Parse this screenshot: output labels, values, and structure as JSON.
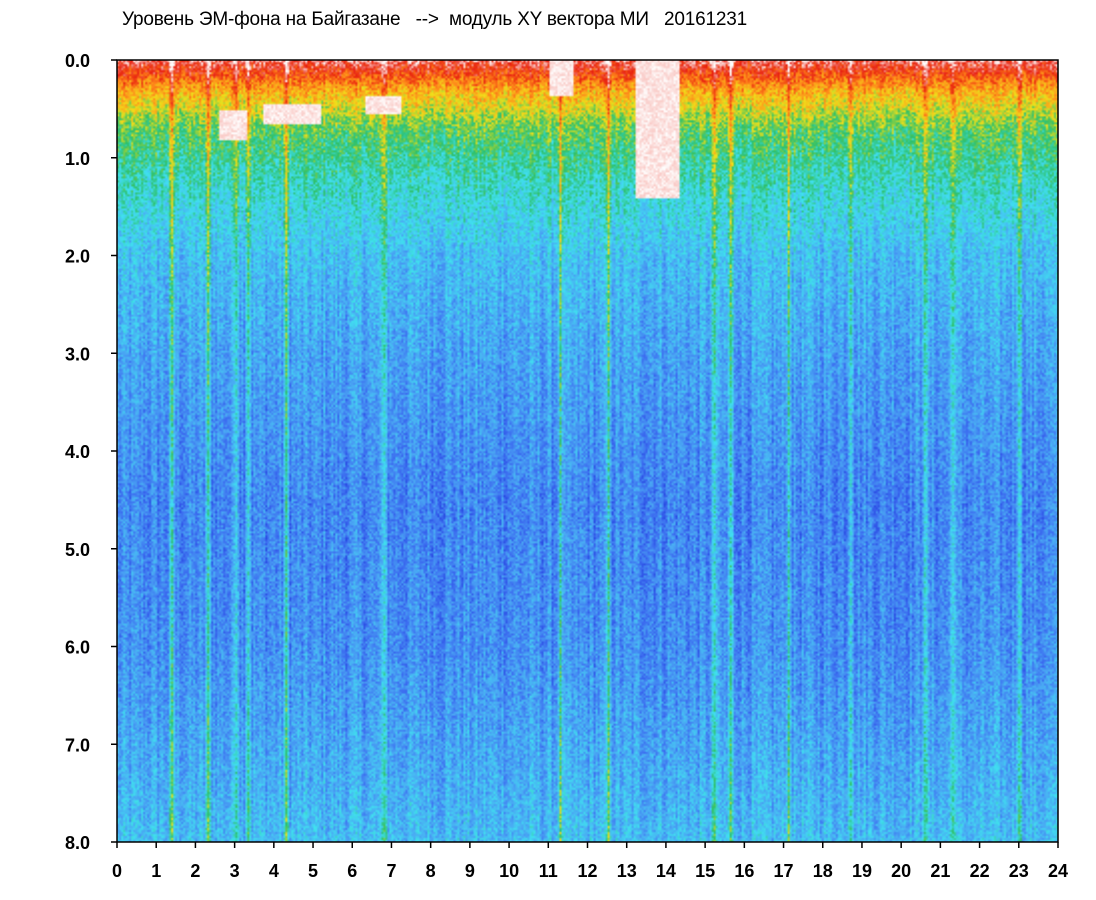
{
  "chart_data": {
    "type": "heatmap",
    "title": "Уровень ЭМ-фона на Байгазане   -->  модуль XY вектора МИ   20161231",
    "xlabel": "",
    "ylabel": "",
    "xlim": [
      0,
      24
    ],
    "ylim": [
      0,
      8
    ],
    "y_inverted": true,
    "grid": false,
    "x_ticks": [
      "0",
      "1",
      "2",
      "3",
      "4",
      "5",
      "6",
      "7",
      "8",
      "9",
      "10",
      "11",
      "12",
      "13",
      "14",
      "15",
      "16",
      "17",
      "18",
      "19",
      "20",
      "21",
      "22",
      "23",
      "24"
    ],
    "y_ticks": [
      "0.0",
      "1.0",
      "2.0",
      "3.0",
      "4.0",
      "5.0",
      "6.0",
      "7.0",
      "8.0"
    ],
    "colorscale": [
      "#1a2fd8",
      "#3c6cf0",
      "#4aa8f4",
      "#40e0f0",
      "#2ec06a",
      "#f0e01a",
      "#ff8a1a",
      "#e82010",
      "#ffffff"
    ],
    "intensity_levels": [
      {
        "y": 0.0,
        "level": 0.92
      },
      {
        "y": 0.3,
        "level": 0.7
      },
      {
        "y": 0.7,
        "level": 0.52
      },
      {
        "y": 1.2,
        "level": 0.42
      },
      {
        "y": 2.0,
        "level": 0.3
      },
      {
        "y": 3.0,
        "level": 0.24
      },
      {
        "y": 4.5,
        "level": 0.18
      },
      {
        "y": 6.0,
        "level": 0.2
      },
      {
        "y": 7.5,
        "level": 0.27
      },
      {
        "y": 8.0,
        "level": 0.3
      }
    ],
    "saturated_regions": [
      {
        "x": [
          2.6,
          3.3
        ],
        "y": [
          0.5,
          0.8
        ]
      },
      {
        "x": [
          3.7,
          5.2
        ],
        "y": [
          0.45,
          0.65
        ]
      },
      {
        "x": [
          6.3,
          7.2
        ],
        "y": [
          0.35,
          0.55
        ]
      },
      {
        "x": [
          11.0,
          11.6
        ],
        "y": [
          0.0,
          0.35
        ]
      },
      {
        "x": [
          13.2,
          14.3
        ],
        "y": [
          0.0,
          1.4
        ]
      }
    ],
    "bright_vertical_streaks": [
      1.4,
      2.3,
      3.0,
      3.3,
      4.3,
      6.8,
      11.3,
      12.5,
      15.2,
      15.6,
      17.1,
      18.7,
      20.6,
      21.3,
      23.0
    ]
  }
}
